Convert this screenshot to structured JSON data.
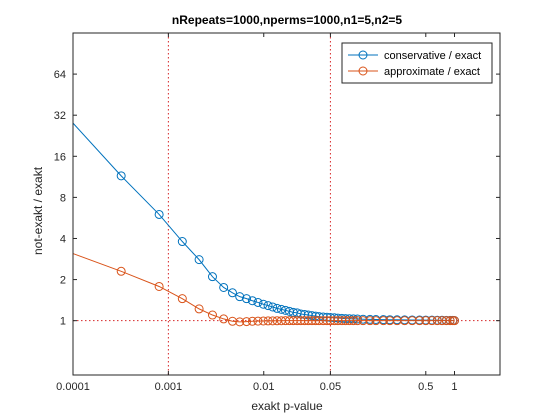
{
  "chart_data": {
    "type": "line",
    "title": "nRepeats=1000,nperms=1000,n1=5,n2=5",
    "xlabel": "exakt p-value",
    "ylabel": "not-exakt / exakt",
    "xscale": "log",
    "yscale": "log2",
    "xlim": [
      0.0001,
      3.0
    ],
    "ylim": [
      0.4,
      128
    ],
    "xticks": [
      0.0001,
      0.001,
      0.01,
      0.05,
      0.5,
      1
    ],
    "xtick_labels": [
      "0.0001",
      "0.001",
      "0.01",
      "0.05",
      "0.5",
      "1"
    ],
    "yticks": [
      1,
      2,
      4,
      8,
      16,
      32,
      64
    ],
    "ytick_labels": [
      "1",
      "2",
      "4",
      "8",
      "16",
      "32",
      "64"
    ],
    "grid": false,
    "legend_position": "top-right",
    "reference_lines": {
      "vertical_x": [
        0.001,
        0.05
      ],
      "horizontal_y": [
        1
      ],
      "color": "#d62728"
    },
    "x": [
      0.0001,
      0.00032,
      0.0008,
      0.0014,
      0.0021,
      0.0029,
      0.0038,
      0.0047,
      0.0056,
      0.0066,
      0.0076,
      0.0087,
      0.0099,
      0.0111,
      0.0124,
      0.0138,
      0.0153,
      0.0169,
      0.0186,
      0.0204,
      0.0224,
      0.0245,
      0.0268,
      0.0293,
      0.032,
      0.035,
      0.038,
      0.042,
      0.046,
      0.05,
      0.055,
      0.06,
      0.066,
      0.072,
      0.079,
      0.087,
      0.096,
      0.11,
      0.13,
      0.15,
      0.18,
      0.21,
      0.25,
      0.3,
      0.36,
      0.43,
      0.5,
      0.58,
      0.66,
      0.74,
      0.82,
      0.9,
      0.96,
      1.0
    ],
    "series": [
      {
        "name": "conservative / exact",
        "color": "#0072bd",
        "marker": "circle",
        "marker_indices": [
          1,
          2,
          3,
          4,
          5,
          6,
          7,
          8,
          9,
          10,
          11,
          12,
          13,
          14,
          15,
          16,
          17,
          18,
          19,
          20,
          21,
          22,
          23,
          24,
          25,
          26,
          27,
          28,
          29,
          30,
          31,
          32,
          33,
          34,
          35,
          36,
          37,
          38,
          39,
          40,
          41,
          42,
          43,
          44,
          45,
          46,
          47,
          48,
          49,
          50,
          51,
          52,
          53
        ],
        "values": [
          28,
          11.5,
          6.0,
          3.8,
          2.8,
          2.1,
          1.75,
          1.6,
          1.5,
          1.45,
          1.4,
          1.36,
          1.32,
          1.29,
          1.26,
          1.23,
          1.21,
          1.19,
          1.17,
          1.15,
          1.14,
          1.12,
          1.11,
          1.1,
          1.09,
          1.08,
          1.07,
          1.065,
          1.06,
          1.055,
          1.05,
          1.045,
          1.04,
          1.035,
          1.033,
          1.03,
          1.028,
          1.025,
          1.022,
          1.02,
          1.018,
          1.016,
          1.015,
          1.013,
          1.012,
          1.011,
          1.01,
          1.009,
          1.008,
          1.007,
          1.006,
          1.005,
          1.004,
          1.003
        ]
      },
      {
        "name": "approximate / exact",
        "color": "#d95319",
        "marker": "circle",
        "marker_indices": [
          1,
          2,
          3,
          4,
          5,
          6,
          7,
          8,
          9,
          10,
          11,
          12,
          13,
          14,
          15,
          16,
          17,
          18,
          19,
          20,
          21,
          22,
          23,
          24,
          25,
          26,
          27,
          28,
          29,
          30,
          31,
          32,
          33,
          34,
          35,
          36,
          37,
          38,
          39,
          40,
          41,
          42,
          43,
          44,
          45,
          46,
          47,
          48,
          49,
          50,
          51,
          52,
          53
        ],
        "values": [
          3.1,
          2.3,
          1.78,
          1.45,
          1.22,
          1.1,
          1.03,
          0.99,
          0.98,
          0.985,
          0.99,
          0.993,
          0.995,
          0.996,
          0.997,
          0.998,
          0.999,
          1.0,
          1.0,
          1.0,
          1.0,
          1.0,
          1.0,
          1.0,
          1.0,
          1.0,
          1.0,
          1.0,
          1.0,
          1.0,
          1.0,
          1.0,
          1.0,
          1.0,
          1.0,
          1.0,
          1.0,
          1.0,
          1.0,
          1.0,
          1.0,
          1.0,
          1.0,
          1.0,
          1.0,
          1.0,
          1.0,
          1.0,
          1.0,
          1.0,
          1.0,
          1.0,
          1.0,
          1.0
        ]
      }
    ]
  }
}
